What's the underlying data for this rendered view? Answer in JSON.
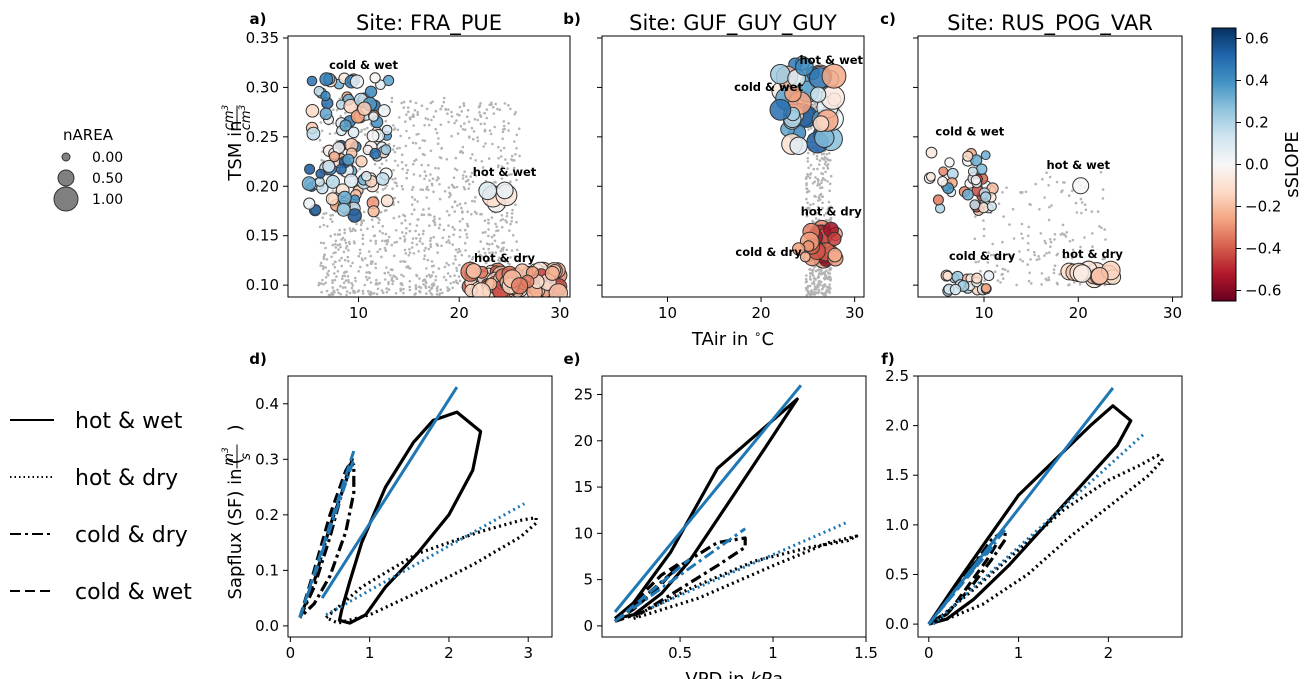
{
  "chart_data": [
    {
      "panel_label": "a)",
      "type": "scatter",
      "title": "Site: FRA_PUE",
      "xlabel": "",
      "ylabel": "TSM in cm3/cm3",
      "xlim": [
        3,
        31
      ],
      "ylim": [
        0.088,
        0.352
      ],
      "xticks": [
        10,
        20,
        30
      ],
      "yticks": [
        0.1,
        0.15,
        0.2,
        0.25,
        0.3,
        0.35
      ],
      "annotations": [
        {
          "text": "cold & wet",
          "x": 10.5,
          "y": 0.322
        },
        {
          "text": "hot & wet",
          "x": 24.5,
          "y": 0.214
        },
        {
          "text": "hot & dry",
          "x": 24.5,
          "y": 0.127
        }
      ],
      "background": {
        "color": "#b4b4b4",
        "x": [
          6,
          26
        ],
        "y": [
          0.09,
          0.29
        ],
        "count": 1100
      },
      "clusters": [
        {
          "x": [
            5,
            13
          ],
          "y": [
            0.17,
            0.31
          ],
          "count": 120,
          "size": [
            0.05,
            0.35
          ],
          "slope": [
            -0.3,
            0.6
          ]
        },
        {
          "x": [
            21,
            30
          ],
          "y": [
            0.092,
            0.115
          ],
          "count": 90,
          "size": [
            0.2,
            0.7
          ],
          "slope": [
            -0.45,
            -0.05
          ]
        },
        {
          "x": [
            22.5,
            25
          ],
          "y": [
            0.178,
            0.198
          ],
          "count": 5,
          "size": [
            0.5,
            0.9
          ],
          "slope": [
            -0.25,
            0.1
          ]
        }
      ]
    },
    {
      "panel_label": "b)",
      "type": "scatter",
      "title": "Site: GUF_GUY_GUY",
      "xlabel": "TAir in °C",
      "ylabel": "",
      "xlim": [
        3,
        31
      ],
      "ylim": [
        0.088,
        0.352
      ],
      "xticks": [
        10,
        20,
        30
      ],
      "yticks": [],
      "annotations": [
        {
          "text": "hot & wet",
          "x": 27.5,
          "y": 0.327
        },
        {
          "text": "cold & wet",
          "x": 20.8,
          "y": 0.3
        },
        {
          "text": "hot & dry",
          "x": 27.5,
          "y": 0.174
        },
        {
          "text": "cold & dry",
          "x": 20.8,
          "y": 0.133
        }
      ],
      "background": {
        "color": "#b4b4b4",
        "x": [
          24.8,
          27.5
        ],
        "y": [
          0.09,
          0.31
        ],
        "count": 450
      },
      "clusters": [
        {
          "x": [
            22,
            28
          ],
          "y": [
            0.24,
            0.325
          ],
          "count": 45,
          "size": [
            0.3,
            1.0
          ],
          "slope": [
            -0.3,
            0.6
          ]
        },
        {
          "x": [
            25,
            28
          ],
          "y": [
            0.125,
            0.16
          ],
          "count": 28,
          "size": [
            0.3,
            0.7
          ],
          "slope": [
            -0.6,
            -0.2
          ]
        },
        {
          "x": [
            24,
            25.5
          ],
          "y": [
            0.108,
            0.14
          ],
          "count": 3,
          "size": [
            0.1,
            0.3
          ],
          "slope": [
            -0.3,
            -0.1
          ]
        }
      ]
    },
    {
      "panel_label": "c)",
      "type": "scatter",
      "title": "Site: RUS_POG_VAR",
      "xlabel": "",
      "ylabel": "",
      "xlim": [
        3,
        31
      ],
      "ylim": [
        0.088,
        0.352
      ],
      "xticks": [
        10,
        20,
        30
      ],
      "yticks": [],
      "annotations": [
        {
          "text": "cold & wet",
          "x": 8.5,
          "y": 0.255
        },
        {
          "text": "hot & wet",
          "x": 20.0,
          "y": 0.221
        },
        {
          "text": "cold & dry",
          "x": 9.8,
          "y": 0.129
        },
        {
          "text": "hot & dry",
          "x": 21.5,
          "y": 0.131
        }
      ],
      "background": {
        "color": "#b4b4b4",
        "x": [
          9,
          23
        ],
        "y": [
          0.1,
          0.215
        ],
        "count": 180
      },
      "clusters": [
        {
          "x": [
            4,
            11
          ],
          "y": [
            0.175,
            0.235
          ],
          "count": 45,
          "size": [
            0.05,
            0.2
          ],
          "slope": [
            -0.45,
            0.4
          ]
        },
        {
          "x": [
            19,
            24
          ],
          "y": [
            0.106,
            0.118
          ],
          "count": 14,
          "size": [
            0.3,
            0.7
          ],
          "slope": [
            -0.2,
            -0.05
          ]
        },
        {
          "x": [
            6,
            11
          ],
          "y": [
            0.092,
            0.11
          ],
          "count": 22,
          "size": [
            0.05,
            0.2
          ],
          "slope": [
            -0.3,
            0.3
          ]
        },
        {
          "x": [
            19.7,
            20.3
          ],
          "y": [
            0.2,
            0.206
          ],
          "count": 1,
          "size": [
            0.5,
            0.5
          ],
          "slope": [
            0.0,
            0.0
          ]
        }
      ]
    },
    {
      "panel_label": "d)",
      "type": "line",
      "title": "",
      "xlabel": "",
      "ylabel": "Sapflux (SF) in (m3/s)",
      "xlim": [
        -0.03,
        3.3
      ],
      "ylim": [
        -0.02,
        0.45
      ],
      "xticks": [
        0,
        1,
        2,
        3
      ],
      "yticks": [
        0.0,
        0.1,
        0.2,
        0.3,
        0.4
      ],
      "series": [
        {
          "style": "solid",
          "color": "#000000",
          "x": [
            0.65,
            0.75,
            0.9,
            1.2,
            1.55,
            1.8,
            2.1,
            2.4,
            2.3,
            2.0,
            1.6,
            1.2,
            0.95,
            0.75,
            0.62,
            0.65
          ],
          "y": [
            0.03,
            0.08,
            0.15,
            0.25,
            0.33,
            0.37,
            0.385,
            0.35,
            0.28,
            0.2,
            0.13,
            0.07,
            0.02,
            0.005,
            0.01,
            0.03
          ]
        },
        {
          "style": "dotted",
          "color": "#000000",
          "x": [
            0.45,
            0.9,
            1.6,
            2.4,
            2.9,
            3.1,
            3.1,
            2.9,
            2.3,
            1.6,
            1.0,
            0.6,
            0.45
          ],
          "y": [
            0.015,
            0.07,
            0.13,
            0.17,
            0.19,
            0.195,
            0.185,
            0.16,
            0.11,
            0.06,
            0.02,
            0.005,
            0.015
          ]
        },
        {
          "style": "dashdot",
          "color": "#000000",
          "x": [
            0.12,
            0.3,
            0.5,
            0.65,
            0.75,
            0.8,
            0.8,
            0.7,
            0.5,
            0.3,
            0.12
          ],
          "y": [
            0.015,
            0.07,
            0.16,
            0.24,
            0.29,
            0.29,
            0.24,
            0.17,
            0.09,
            0.04,
            0.015
          ]
        },
        {
          "style": "dashed",
          "color": "#000000",
          "x": [
            0.12,
            0.3,
            0.5,
            0.7,
            0.78,
            0.7,
            0.5,
            0.3,
            0.12
          ],
          "y": [
            0.015,
            0.1,
            0.2,
            0.28,
            0.3,
            0.26,
            0.18,
            0.08,
            0.015
          ]
        },
        {
          "style": "solid",
          "color": "#1f77b4",
          "x": [
            0.4,
            2.1
          ],
          "y": [
            0.05,
            0.43
          ]
        },
        {
          "style": "dotted",
          "color": "#1f77b4",
          "x": [
            0.45,
            2.95
          ],
          "y": [
            0.02,
            0.22
          ]
        },
        {
          "style": "dashdot",
          "color": "#1f77b4",
          "x": [
            0.12,
            0.8
          ],
          "y": [
            0.015,
            0.3
          ]
        },
        {
          "style": "dashed",
          "color": "#1f77b4",
          "x": [
            0.12,
            0.8
          ],
          "y": [
            0.015,
            0.315
          ]
        }
      ]
    },
    {
      "panel_label": "e)",
      "type": "line",
      "title": "",
      "xlabel": "VPD in kPa",
      "ylabel": "",
      "xlim": [
        0.08,
        1.5
      ],
      "ylim": [
        -1.2,
        27
      ],
      "xticks": [
        0.5,
        1.0,
        1.5
      ],
      "yticks": [
        0,
        5,
        10,
        15,
        20,
        25
      ],
      "series": [
        {
          "style": "solid",
          "color": "#000000",
          "x": [
            0.15,
            0.25,
            0.45,
            0.7,
            0.9,
            1.13,
            0.95,
            0.75,
            0.55,
            0.4,
            0.25,
            0.15
          ],
          "y": [
            0.8,
            2.5,
            8,
            17,
            20.5,
            24.5,
            19,
            13,
            7,
            3.5,
            1.2,
            0.8
          ]
        },
        {
          "style": "dotted",
          "color": "#000000",
          "x": [
            0.25,
            0.6,
            1.0,
            1.3,
            1.45,
            1.4,
            1.2,
            0.9,
            0.55,
            0.3,
            0.25
          ],
          "y": [
            0.8,
            3,
            6.5,
            9,
            9.7,
            9.2,
            8.5,
            7,
            4,
            1.5,
            0.8
          ]
        },
        {
          "style": "dashdot",
          "color": "#000000",
          "x": [
            0.15,
            0.3,
            0.5,
            0.7,
            0.85,
            0.85,
            0.7,
            0.5,
            0.3,
            0.15
          ],
          "y": [
            0.5,
            3,
            6.5,
            9,
            9.5,
            8.5,
            6.5,
            4,
            1.5,
            0.5
          ]
        },
        {
          "style": "dashed",
          "color": "#000000",
          "x": [
            0.15,
            0.25,
            0.4,
            0.5,
            0.4,
            0.25,
            0.15
          ],
          "y": [
            0.5,
            2.5,
            5.5,
            6.8,
            4.5,
            1.8,
            0.5
          ]
        },
        {
          "style": "solid",
          "color": "#1f77b4",
          "x": [
            0.15,
            1.15
          ],
          "y": [
            1.5,
            26
          ]
        },
        {
          "style": "dotted",
          "color": "#1f77b4",
          "x": [
            0.35,
            1.4
          ],
          "y": [
            2,
            11.2
          ]
        },
        {
          "style": "dashdot",
          "color": "#1f77b4",
          "x": [
            0.15,
            0.85
          ],
          "y": [
            0.5,
            10.5
          ]
        },
        {
          "style": "dashed",
          "color": "#1f77b4",
          "x": [
            0.15,
            0.55
          ],
          "y": [
            0.5,
            7.2
          ]
        }
      ]
    },
    {
      "panel_label": "f)",
      "type": "line",
      "title": "",
      "xlabel": "",
      "ylabel": "",
      "xlim": [
        -0.12,
        2.82
      ],
      "ylim": [
        -0.13,
        2.5
      ],
      "xticks": [
        0,
        1,
        2
      ],
      "yticks": [
        0.0,
        0.5,
        1.0,
        1.5,
        2.0,
        2.5
      ],
      "series": [
        {
          "style": "solid",
          "color": "#000000",
          "x": [
            0.0,
            0.3,
            0.65,
            1.0,
            1.4,
            1.8,
            2.05,
            2.25,
            2.1,
            1.7,
            1.3,
            0.9,
            0.5,
            0.2,
            0.0
          ],
          "y": [
            0.0,
            0.4,
            0.85,
            1.3,
            1.65,
            2.0,
            2.2,
            2.05,
            1.8,
            1.4,
            1.0,
            0.6,
            0.25,
            0.05,
            0.0
          ]
        },
        {
          "style": "dotted",
          "color": "#000000",
          "x": [
            0.1,
            0.5,
            1.0,
            1.5,
            2.0,
            2.35,
            2.55,
            2.6,
            2.45,
            2.1,
            1.6,
            1.1,
            0.6,
            0.2,
            0.1
          ],
          "y": [
            0.05,
            0.35,
            0.75,
            1.15,
            1.45,
            1.6,
            1.7,
            1.65,
            1.5,
            1.25,
            0.9,
            0.5,
            0.2,
            0.05,
            0.05
          ]
        },
        {
          "style": "dashdot",
          "color": "#000000",
          "x": [
            0.0,
            0.25,
            0.5,
            0.7,
            0.85,
            0.85,
            0.7,
            0.45,
            0.2,
            0.0
          ],
          "y": [
            0.0,
            0.3,
            0.6,
            0.85,
            0.95,
            0.85,
            0.65,
            0.35,
            0.1,
            0.0
          ]
        },
        {
          "style": "dashed",
          "color": "#000000",
          "x": [
            0.0,
            0.2,
            0.4,
            0.6,
            0.75,
            0.65,
            0.45,
            0.25,
            0.0
          ],
          "y": [
            0.0,
            0.25,
            0.5,
            0.7,
            0.8,
            0.65,
            0.4,
            0.15,
            0.0
          ]
        },
        {
          "style": "solid",
          "color": "#1f77b4",
          "x": [
            0.0,
            2.05
          ],
          "y": [
            0.0,
            2.38
          ]
        },
        {
          "style": "dotted",
          "color": "#1f77b4",
          "x": [
            0.05,
            2.4
          ],
          "y": [
            0.0,
            1.92
          ]
        },
        {
          "style": "dashdot",
          "color": "#1f77b4",
          "x": [
            0.0,
            0.85
          ],
          "y": [
            0.0,
            0.95
          ]
        },
        {
          "style": "dashed",
          "color": "#1f77b4",
          "x": [
            0.0,
            0.75
          ],
          "y": [
            0.0,
            0.82
          ]
        }
      ]
    }
  ],
  "size_legend": {
    "title": "nAREA",
    "entries": [
      {
        "label": "0.00",
        "value": 0.0
      },
      {
        "label": "0.50",
        "value": 0.5
      },
      {
        "label": "1.00",
        "value": 1.0
      }
    ]
  },
  "line_legend": [
    {
      "label": "hot & wet",
      "style": "solid"
    },
    {
      "label": "hot & dry",
      "style": "dotted"
    },
    {
      "label": "cold & dry",
      "style": "dashdot"
    },
    {
      "label": "cold & wet",
      "style": "dashed"
    }
  ],
  "colorbar": {
    "label": "sSLOPE",
    "cmap": "RdBu",
    "range": [
      -0.65,
      0.65
    ],
    "ticks": [
      0.6,
      0.4,
      0.2,
      0.0,
      -0.2,
      -0.4,
      -0.6
    ],
    "tick_labels": [
      "0.6",
      "0.4",
      "0.2",
      "0.0",
      "−0.2",
      "−0.4",
      "−0.6"
    ],
    "colors": [
      "#67001f",
      "#b2182b",
      "#d6604d",
      "#f4a582",
      "#fddbc7",
      "#f7f7f7",
      "#d1e5f0",
      "#92c5de",
      "#4393c3",
      "#2166ac",
      "#053061"
    ]
  },
  "colors": {
    "axis": "#000000",
    "background_points": "#b4b4b4",
    "fit_line": "#1f77b4",
    "loop_line": "#000000"
  }
}
